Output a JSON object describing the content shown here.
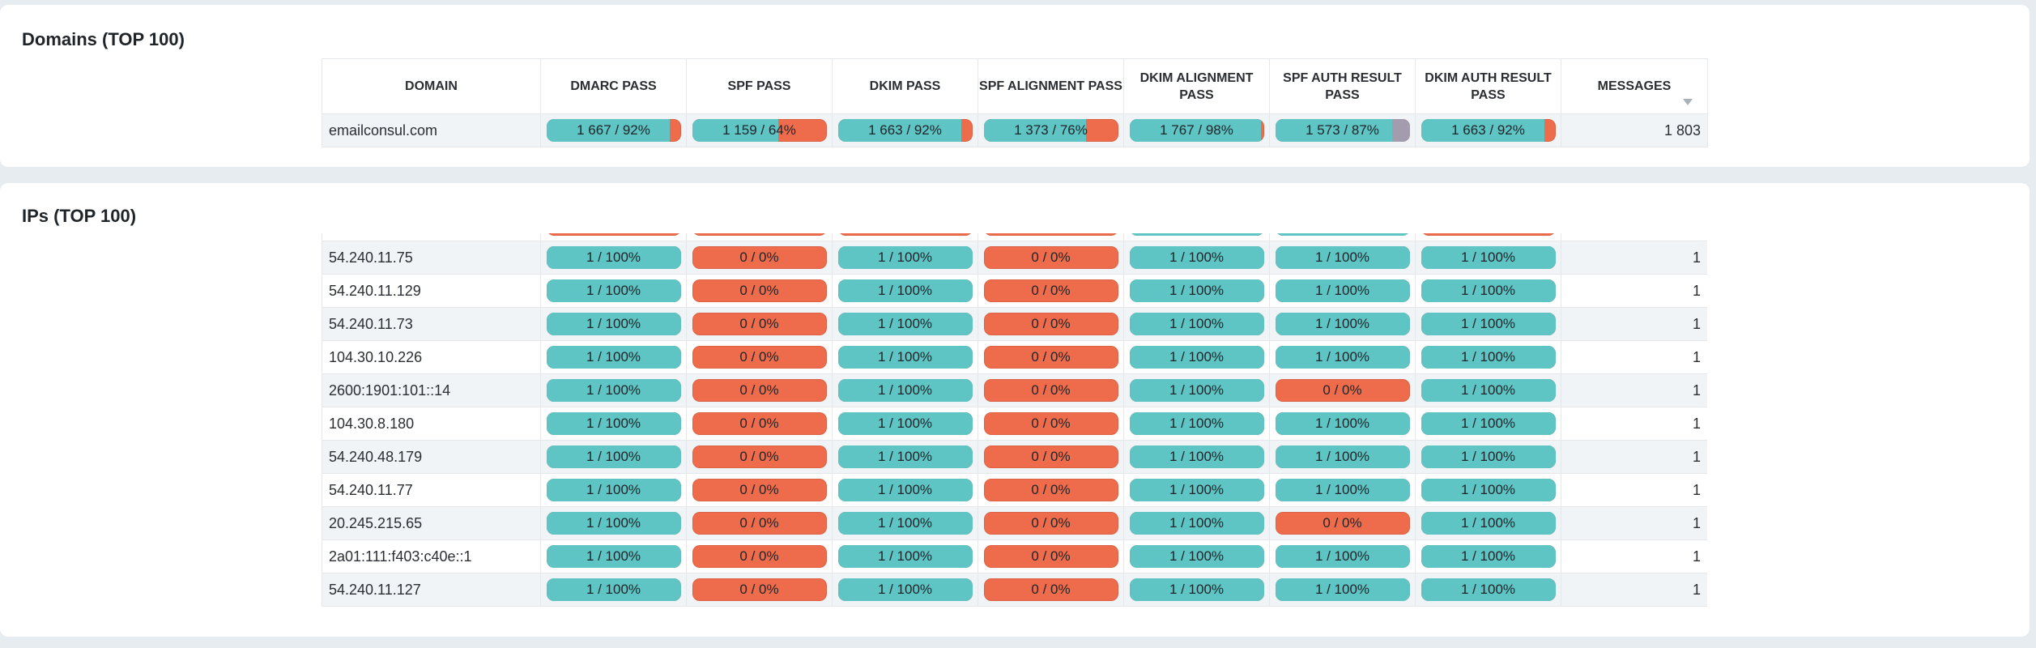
{
  "domains_panel": {
    "title": "Domains (TOP 100)",
    "columns": [
      "DOMAIN",
      "DMARC PASS",
      "SPF PASS",
      "DKIM PASS",
      "SPF ALIGNMENT PASS",
      "DKIM ALIGNMENT PASS",
      "SPF AUTH RESULT PASS",
      "DKIM AUTH RESULT PASS",
      "MESSAGES"
    ],
    "rows": [
      {
        "name": "emailconsul.com",
        "bars": [
          {
            "label": "1 667 / 92%",
            "pass": 0.92
          },
          {
            "label": "1 159 / 64%",
            "pass": 0.64
          },
          {
            "label": "1 663 / 92%",
            "pass": 0.92
          },
          {
            "label": "1 373 / 76%",
            "pass": 0.76
          },
          {
            "label": "1 767 / 98%",
            "pass": 0.98
          },
          {
            "label": "1 573 / 87%",
            "pass": 0.87,
            "other": 0.13
          },
          {
            "label": "1 663 / 92%",
            "pass": 0.92
          }
        ],
        "messages": "1 803"
      }
    ]
  },
  "ips_panel": {
    "title": "IPs (TOP 100)",
    "partial_row": {
      "bars": [
        {
          "label": "",
          "pass": 0
        },
        {
          "label": "",
          "pass": 0
        },
        {
          "label": "",
          "pass": 0
        },
        {
          "label": "",
          "pass": 0
        },
        {
          "label": "",
          "pass": 1
        },
        {
          "label": "",
          "pass": 1
        },
        {
          "label": "",
          "pass": 0
        }
      ]
    },
    "rows": [
      {
        "name": "54.240.11.75",
        "bars": [
          {
            "label": "1 / 100%",
            "pass": 1
          },
          {
            "label": "0 / 0%",
            "pass": 0
          },
          {
            "label": "1 / 100%",
            "pass": 1
          },
          {
            "label": "0 / 0%",
            "pass": 0
          },
          {
            "label": "1 / 100%",
            "pass": 1
          },
          {
            "label": "1 / 100%",
            "pass": 1
          },
          {
            "label": "1 / 100%",
            "pass": 1
          }
        ],
        "messages": "1"
      },
      {
        "name": "54.240.11.129",
        "bars": [
          {
            "label": "1 / 100%",
            "pass": 1
          },
          {
            "label": "0 / 0%",
            "pass": 0
          },
          {
            "label": "1 / 100%",
            "pass": 1
          },
          {
            "label": "0 / 0%",
            "pass": 0
          },
          {
            "label": "1 / 100%",
            "pass": 1
          },
          {
            "label": "1 / 100%",
            "pass": 1
          },
          {
            "label": "1 / 100%",
            "pass": 1
          }
        ],
        "messages": "1"
      },
      {
        "name": "54.240.11.73",
        "bars": [
          {
            "label": "1 / 100%",
            "pass": 1
          },
          {
            "label": "0 / 0%",
            "pass": 0
          },
          {
            "label": "1 / 100%",
            "pass": 1
          },
          {
            "label": "0 / 0%",
            "pass": 0
          },
          {
            "label": "1 / 100%",
            "pass": 1
          },
          {
            "label": "1 / 100%",
            "pass": 1
          },
          {
            "label": "1 / 100%",
            "pass": 1
          }
        ],
        "messages": "1"
      },
      {
        "name": "104.30.10.226",
        "bars": [
          {
            "label": "1 / 100%",
            "pass": 1
          },
          {
            "label": "0 / 0%",
            "pass": 0
          },
          {
            "label": "1 / 100%",
            "pass": 1
          },
          {
            "label": "0 / 0%",
            "pass": 0
          },
          {
            "label": "1 / 100%",
            "pass": 1
          },
          {
            "label": "1 / 100%",
            "pass": 1
          },
          {
            "label": "1 / 100%",
            "pass": 1
          }
        ],
        "messages": "1"
      },
      {
        "name": "2600:1901:101::14",
        "bars": [
          {
            "label": "1 / 100%",
            "pass": 1
          },
          {
            "label": "0 / 0%",
            "pass": 0
          },
          {
            "label": "1 / 100%",
            "pass": 1
          },
          {
            "label": "0 / 0%",
            "pass": 0
          },
          {
            "label": "1 / 100%",
            "pass": 1
          },
          {
            "label": "0 / 0%",
            "pass": 0
          },
          {
            "label": "1 / 100%",
            "pass": 1
          }
        ],
        "messages": "1"
      },
      {
        "name": "104.30.8.180",
        "bars": [
          {
            "label": "1 / 100%",
            "pass": 1
          },
          {
            "label": "0 / 0%",
            "pass": 0
          },
          {
            "label": "1 / 100%",
            "pass": 1
          },
          {
            "label": "0 / 0%",
            "pass": 0
          },
          {
            "label": "1 / 100%",
            "pass": 1
          },
          {
            "label": "1 / 100%",
            "pass": 1
          },
          {
            "label": "1 / 100%",
            "pass": 1
          }
        ],
        "messages": "1"
      },
      {
        "name": "54.240.48.179",
        "bars": [
          {
            "label": "1 / 100%",
            "pass": 1
          },
          {
            "label": "0 / 0%",
            "pass": 0
          },
          {
            "label": "1 / 100%",
            "pass": 1
          },
          {
            "label": "0 / 0%",
            "pass": 0
          },
          {
            "label": "1 / 100%",
            "pass": 1
          },
          {
            "label": "1 / 100%",
            "pass": 1
          },
          {
            "label": "1 / 100%",
            "pass": 1
          }
        ],
        "messages": "1"
      },
      {
        "name": "54.240.11.77",
        "bars": [
          {
            "label": "1 / 100%",
            "pass": 1
          },
          {
            "label": "0 / 0%",
            "pass": 0
          },
          {
            "label": "1 / 100%",
            "pass": 1
          },
          {
            "label": "0 / 0%",
            "pass": 0
          },
          {
            "label": "1 / 100%",
            "pass": 1
          },
          {
            "label": "1 / 100%",
            "pass": 1
          },
          {
            "label": "1 / 100%",
            "pass": 1
          }
        ],
        "messages": "1"
      },
      {
        "name": "20.245.215.65",
        "bars": [
          {
            "label": "1 / 100%",
            "pass": 1
          },
          {
            "label": "0 / 0%",
            "pass": 0
          },
          {
            "label": "1 / 100%",
            "pass": 1
          },
          {
            "label": "0 / 0%",
            "pass": 0
          },
          {
            "label": "1 / 100%",
            "pass": 1
          },
          {
            "label": "0 / 0%",
            "pass": 0
          },
          {
            "label": "1 / 100%",
            "pass": 1
          }
        ],
        "messages": "1"
      },
      {
        "name": "2a01:111:f403:c40e::1",
        "bars": [
          {
            "label": "1 / 100%",
            "pass": 1
          },
          {
            "label": "0 / 0%",
            "pass": 0
          },
          {
            "label": "1 / 100%",
            "pass": 1
          },
          {
            "label": "0 / 0%",
            "pass": 0
          },
          {
            "label": "1 / 100%",
            "pass": 1
          },
          {
            "label": "1 / 100%",
            "pass": 1
          },
          {
            "label": "1 / 100%",
            "pass": 1
          }
        ],
        "messages": "1"
      },
      {
        "name": "54.240.11.127",
        "bars": [
          {
            "label": "1 / 100%",
            "pass": 1
          },
          {
            "label": "0 / 0%",
            "pass": 0
          },
          {
            "label": "1 / 100%",
            "pass": 1
          },
          {
            "label": "0 / 0%",
            "pass": 0
          },
          {
            "label": "1 / 100%",
            "pass": 1
          },
          {
            "label": "1 / 100%",
            "pass": 1
          },
          {
            "label": "1 / 100%",
            "pass": 1
          }
        ],
        "messages": "1"
      }
    ]
  },
  "colors": {
    "pass": "#5ec4c4",
    "fail": "#ee6c4b",
    "other": "#a39cae",
    "row_alt": "#f0f4f7",
    "background": "#e6ecef"
  },
  "icons": {
    "sort": "sort-descending-icon"
  }
}
